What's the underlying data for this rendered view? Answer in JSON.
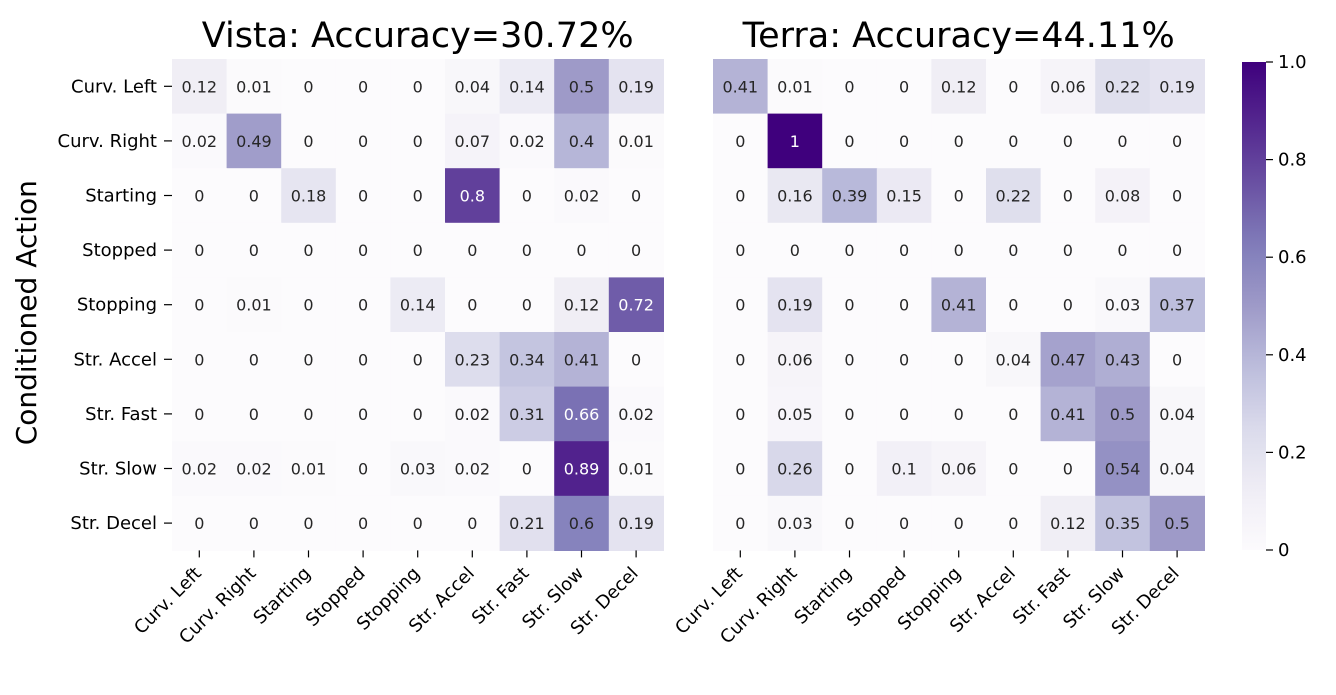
{
  "chart_data": [
    {
      "type": "heatmap",
      "title": "Vista: Accuracy=30.72%",
      "ylabel": "Conditioned Action",
      "xlabel": "",
      "x_categories": [
        "Curv. Left",
        "Curv. Right",
        "Starting",
        "Stopped",
        "Stopping",
        "Str. Accel",
        "Str. Fast",
        "Str. Slow",
        "Str. Decel"
      ],
      "y_categories": [
        "Curv. Left",
        "Curv. Right",
        "Starting",
        "Stopped",
        "Stopping",
        "Str. Accel",
        "Str. Fast",
        "Str. Slow",
        "Str. Decel"
      ],
      "values": [
        [
          0.12,
          0.01,
          0,
          0,
          0,
          0.04,
          0.14,
          0.5,
          0.19
        ],
        [
          0.02,
          0.49,
          0,
          0,
          0,
          0.07,
          0.02,
          0.4,
          0.01
        ],
        [
          0,
          0,
          0.18,
          0,
          0,
          0.8,
          0,
          0.02,
          0
        ],
        [
          0,
          0,
          0,
          0,
          0,
          0,
          0,
          0,
          0
        ],
        [
          0,
          0.01,
          0,
          0,
          0.14,
          0,
          0,
          0.12,
          0.72
        ],
        [
          0,
          0,
          0,
          0,
          0,
          0.23,
          0.34,
          0.41,
          0
        ],
        [
          0,
          0,
          0,
          0,
          0,
          0.02,
          0.31,
          0.66,
          0.02
        ],
        [
          0.02,
          0.02,
          0.01,
          0,
          0.03,
          0.02,
          0,
          0.89,
          0.01
        ],
        [
          0,
          0,
          0,
          0,
          0,
          0,
          0.21,
          0.6,
          0.19
        ]
      ]
    },
    {
      "type": "heatmap",
      "title": "Terra: Accuracy=44.11%",
      "ylabel": "",
      "xlabel": "",
      "x_categories": [
        "Curv. Left",
        "Curv. Right",
        "Starting",
        "Stopped",
        "Stopping",
        "Str. Accel",
        "Str. Fast",
        "Str. Slow",
        "Str. Decel"
      ],
      "y_categories": [
        "Curv. Left",
        "Curv. Right",
        "Starting",
        "Stopped",
        "Stopping",
        "Str. Accel",
        "Str. Fast",
        "Str. Slow",
        "Str. Decel"
      ],
      "values": [
        [
          0.41,
          0.01,
          0,
          0,
          0.12,
          0,
          0.06,
          0.22,
          0.19
        ],
        [
          0,
          1,
          0,
          0,
          0,
          0,
          0,
          0,
          0
        ],
        [
          0,
          0.16,
          0.39,
          0.15,
          0,
          0.22,
          0,
          0.08,
          0
        ],
        [
          0,
          0,
          0,
          0,
          0,
          0,
          0,
          0,
          0
        ],
        [
          0,
          0.19,
          0,
          0,
          0.41,
          0,
          0,
          0.03,
          0.37
        ],
        [
          0,
          0.06,
          0,
          0,
          0,
          0.04,
          0.47,
          0.43,
          0
        ],
        [
          0,
          0.05,
          0,
          0,
          0,
          0,
          0.41,
          0.5,
          0.04
        ],
        [
          0,
          0.26,
          0,
          0.1,
          0.06,
          0,
          0,
          0.54,
          0.04
        ],
        [
          0,
          0.03,
          0,
          0,
          0,
          0,
          0.12,
          0.35,
          0.5
        ]
      ]
    }
  ],
  "colorbar": {
    "range": [
      0,
      1
    ],
    "ticks": [
      "0",
      "0.2",
      "0.4",
      "0.6",
      "0.8",
      "1.0"
    ],
    "tick_values": [
      0,
      0.2,
      0.4,
      0.6,
      0.8,
      1.0
    ],
    "colormap": "Purples",
    "low_color": "#fcfbfd",
    "high_color": "#3f007d"
  }
}
